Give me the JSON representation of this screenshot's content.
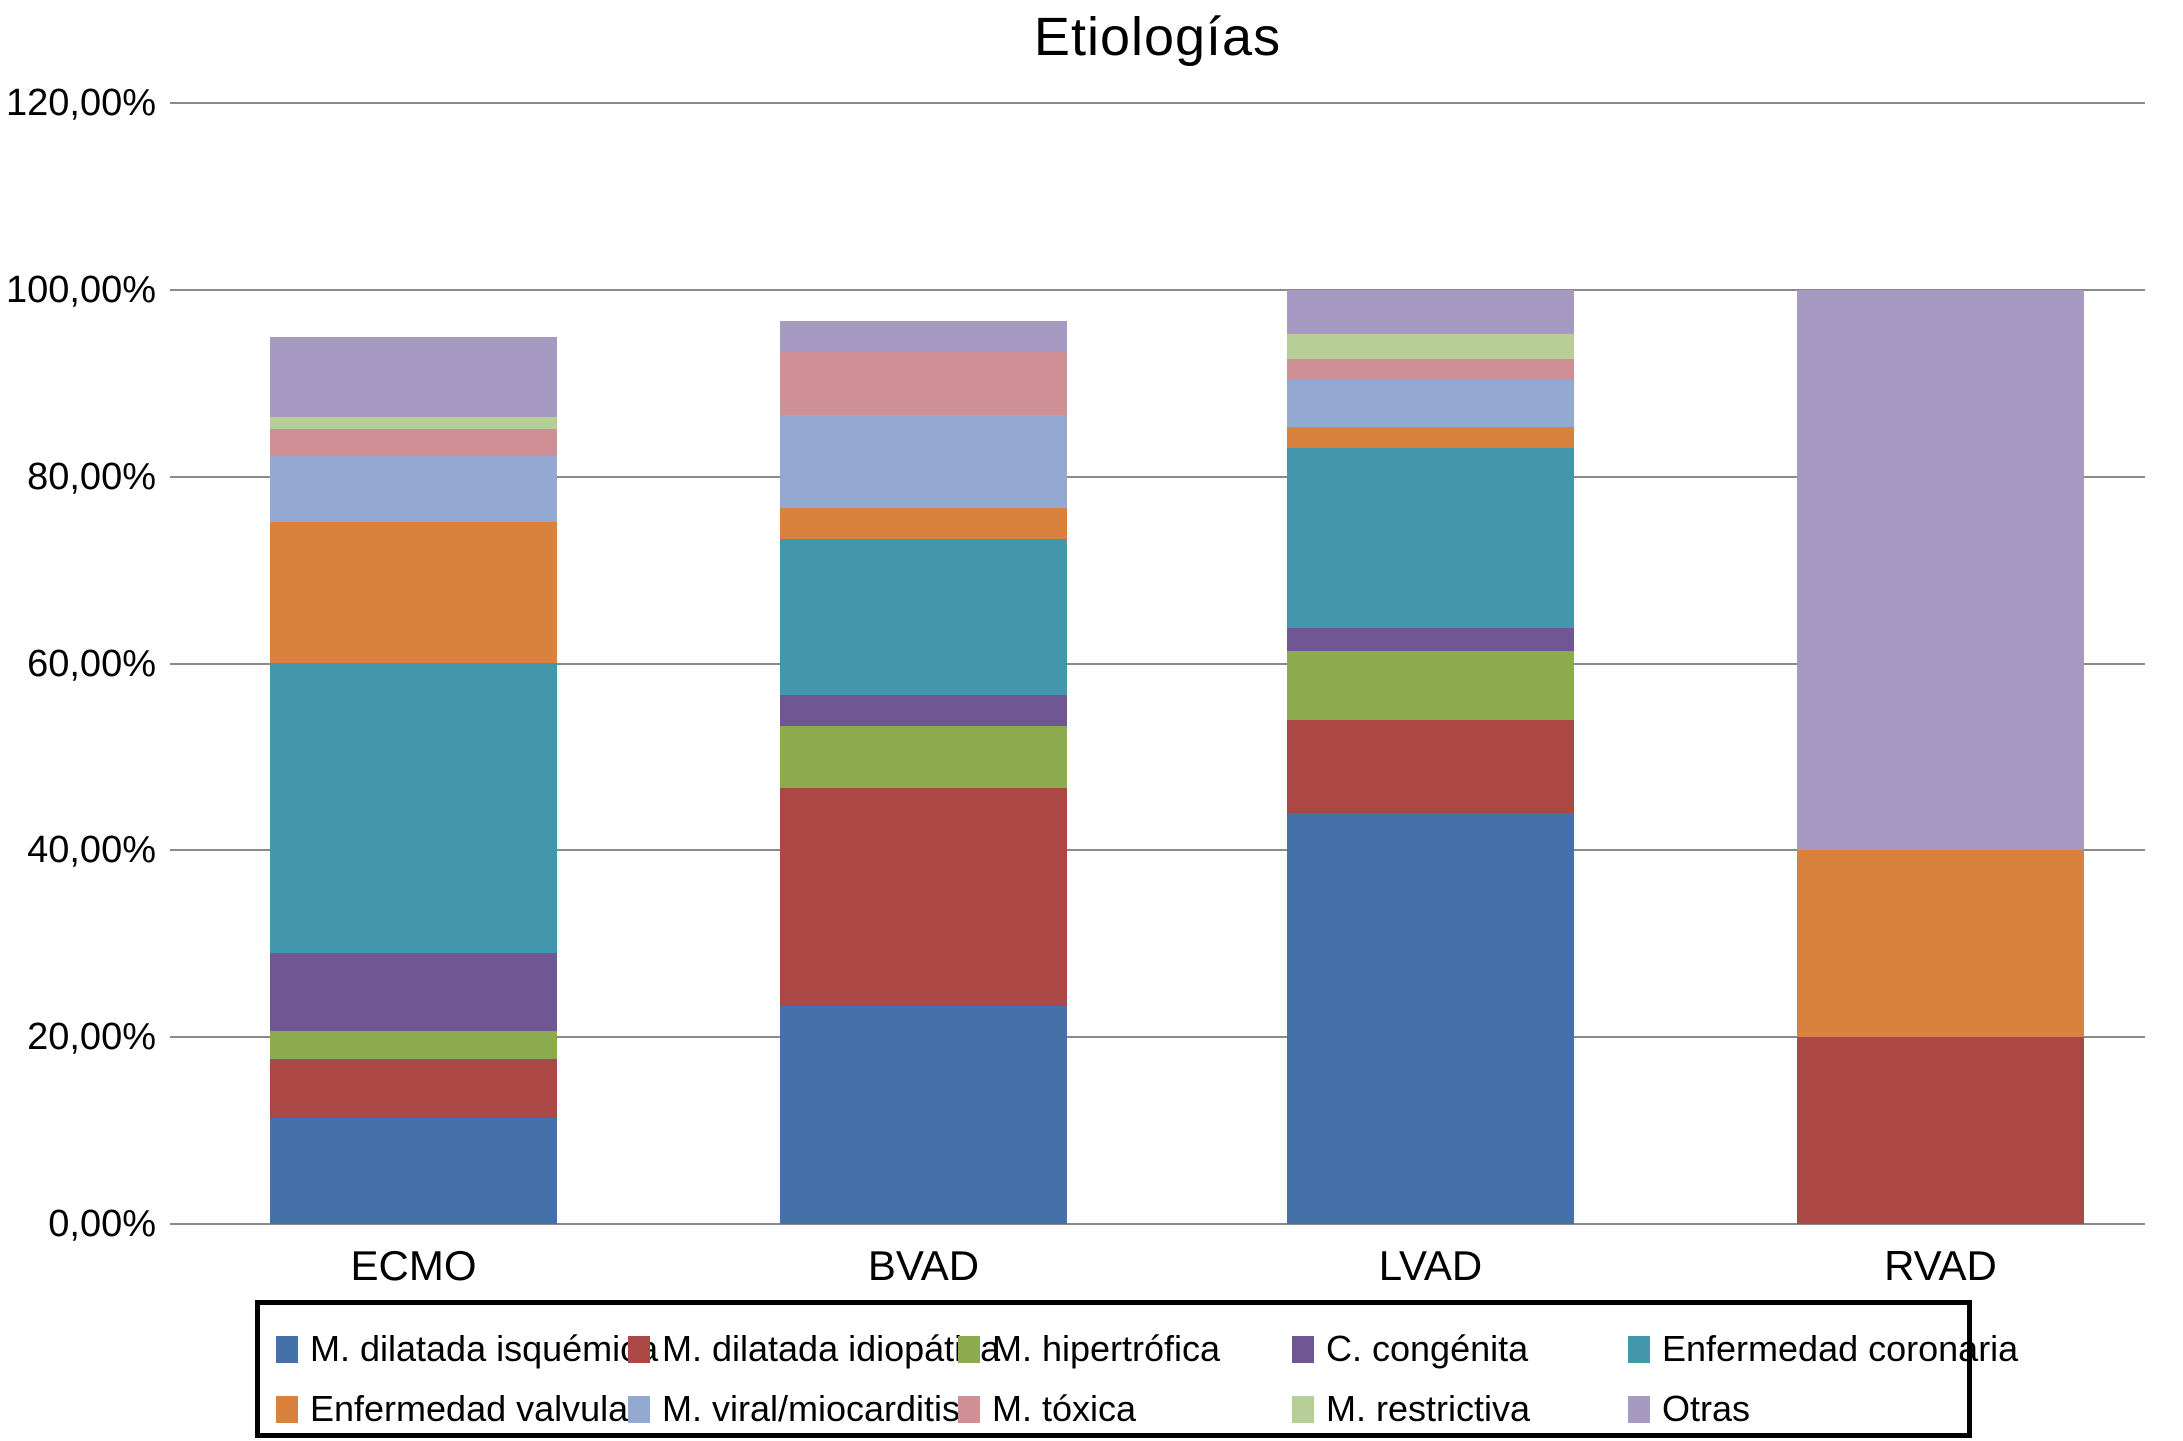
{
  "chart_data": {
    "type": "bar",
    "stacked": true,
    "title": "Etiologías",
    "categories": [
      "ECMO",
      "BVAD",
      "LVAD",
      "RVAD"
    ],
    "series": [
      {
        "name": "M. dilatada isquémica",
        "color": "#4472A8",
        "values": [
          11.4,
          23.33,
          44.0,
          0
        ]
      },
      {
        "name": "M. dilatada idiopática",
        "color": "#AB4744",
        "values": [
          6.3,
          23.33,
          10.0,
          20.0
        ]
      },
      {
        "name": "M. hipertrófica",
        "color": "#8CAA4E",
        "values": [
          3.0,
          6.67,
          7.3,
          0
        ]
      },
      {
        "name": "C. congénita",
        "color": "#6F5795",
        "values": [
          8.3,
          3.33,
          2.5,
          0
        ]
      },
      {
        "name": "Enfermedad coronaria",
        "color": "#4397AD",
        "values": [
          31.1,
          16.67,
          19.3,
          0
        ]
      },
      {
        "name": "Enfermedad valvular",
        "color": "#D9823D",
        "values": [
          15.1,
          3.33,
          2.2,
          20.0
        ]
      },
      {
        "name": "M. viral/miocarditis",
        "color": "#93A9D2",
        "values": [
          7.0,
          10.0,
          5.0,
          0
        ]
      },
      {
        "name": "M. tóxica",
        "color": "#CE9095",
        "values": [
          2.9,
          6.67,
          2.3,
          0
        ]
      },
      {
        "name": "M. restrictiva",
        "color": "#B7CF96",
        "values": [
          1.3,
          0,
          2.7,
          0
        ]
      },
      {
        "name": "Otras",
        "color": "#A79AC2",
        "values": [
          8.6,
          3.33,
          4.7,
          60.0
        ]
      }
    ],
    "stack_totals": [
      95.0,
      96.66,
      100.0,
      100.0
    ],
    "ylim": [
      0,
      120
    ],
    "ytick_step": 20,
    "ytick_labels": [
      "0,00%",
      "20,00%",
      "40,00%",
      "60,00%",
      "80,00%",
      "100,00%",
      "120,00%"
    ],
    "grid": true,
    "gridline_color": "#8a8a8a",
    "legend_position": "bottom",
    "background_color": "#ffffff"
  }
}
